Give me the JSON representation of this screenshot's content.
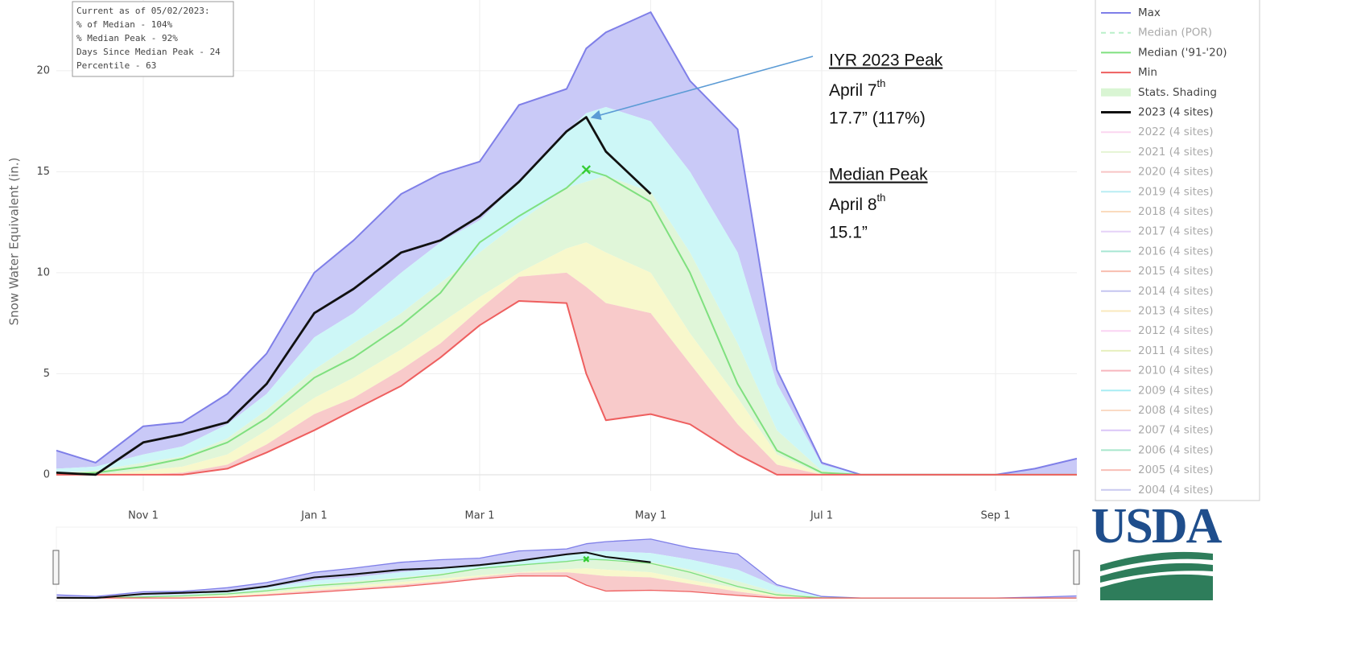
{
  "chart_data": {
    "type": "line",
    "y_label": "Snow Water Equivalent (in.)",
    "info_box": [
      "Current as of 05/02/2023:",
      "% of Median - 104%",
      "% Median Peak - 92%",
      "Days Since Median Peak - 24",
      "Percentile - 63"
    ],
    "x": [
      "Oct 1",
      "Oct 15",
      "Nov 1",
      "Nov 15",
      "Dec 1",
      "Dec 15",
      "Jan 1",
      "Jan 15",
      "Feb 1",
      "Feb 15",
      "Mar 1",
      "Mar 15",
      "Apr 1",
      "Apr 8",
      "Apr 15",
      "May 1",
      "May 15",
      "Jun 1",
      "Jun 15",
      "Jul 1",
      "Jul 15",
      "Aug 1",
      "Sep 1",
      "Sep 15",
      "Sep 30"
    ],
    "xlim": [
      "Oct 1",
      "Sep 30"
    ],
    "xticks": [
      "Nov 1",
      "Jan 1",
      "Mar 1",
      "May 1",
      "Jul 1",
      "Sep 1"
    ],
    "ylim": [
      -0.6,
      23.5
    ],
    "yticks": [
      0,
      5,
      10,
      15,
      20
    ],
    "grid": true,
    "series": [
      {
        "name": "Max",
        "color": "#7f7fe8",
        "values": [
          1.2,
          0.6,
          2.4,
          2.6,
          4.0,
          6.0,
          10.0,
          11.6,
          13.9,
          14.9,
          15.5,
          18.3,
          19.1,
          21.1,
          21.9,
          22.9,
          19.5,
          17.1,
          5.2,
          0.6,
          0,
          0,
          0,
          0.3,
          0.8
        ]
      },
      {
        "name": "Median (POR)",
        "color": "#66dd88",
        "visible": false,
        "dash": true
      },
      {
        "name": "Median ('91-'20)",
        "color": "#7fe07f",
        "values": [
          0,
          0.1,
          0.4,
          0.8,
          1.6,
          2.8,
          4.8,
          5.8,
          7.4,
          9.0,
          11.5,
          12.8,
          14.2,
          15.1,
          14.8,
          13.5,
          10.0,
          4.5,
          1.2,
          0.1,
          0,
          0,
          0,
          0,
          0
        ]
      },
      {
        "name": "Min",
        "color": "#ee5f5f",
        "values": [
          0,
          0,
          0,
          0,
          0.3,
          1.1,
          2.2,
          3.2,
          4.4,
          5.8,
          7.4,
          8.6,
          8.5,
          5.0,
          2.7,
          3.0,
          2.5,
          1.0,
          0,
          0,
          0,
          0,
          0,
          0,
          0
        ]
      },
      {
        "name": "Stats. Shading",
        "color": "#d9f5d3",
        "bands": [
          {
            "color": "#c9c9f7",
            "values": [
              0.3,
              0.4,
              1.0,
              1.4,
              2.5,
              4.0,
              6.8,
              8.0,
              10.0,
              11.5,
              12.6,
              14.5,
              17.0,
              17.9,
              18.2,
              17.5,
              15.0,
              11.0,
              4.5,
              0.5,
              0,
              0,
              0,
              0,
              0
            ]
          },
          {
            "color": "#cdf7f7",
            "values": [
              0.1,
              0.2,
              0.6,
              0.9,
              1.8,
              3.2,
              5.2,
              6.5,
              8.0,
              9.5,
              11.0,
              12.5,
              14.2,
              14.5,
              14.8,
              14.0,
              11.0,
              6.5,
              2.2,
              0.2,
              0,
              0,
              0,
              0,
              0
            ]
          },
          {
            "color": "#e0f6d9",
            "values": [
              0,
              0,
              0.2,
              0.4,
              1.0,
              2.2,
              3.8,
              4.8,
              6.2,
              7.5,
              8.8,
              10.0,
              11.2,
              11.5,
              11.0,
              10.0,
              7.0,
              3.8,
              1.0,
              0,
              0,
              0,
              0,
              0,
              0
            ]
          },
          {
            "color": "#f8f8cc",
            "values": [
              0,
              0,
              0,
              0.1,
              0.5,
              1.5,
              3.0,
              3.8,
              5.2,
              6.5,
              8.2,
              9.8,
              10.0,
              9.3,
              8.5,
              8.0,
              5.5,
              2.5,
              0.5,
              0,
              0,
              0,
              0,
              0,
              0
            ]
          },
          {
            "color": "#f8caca"
          }
        ]
      },
      {
        "name": "2023 (4 sites)",
        "color": "#111111",
        "values": [
          0.1,
          0,
          1.6,
          2.0,
          2.6,
          4.5,
          8.0,
          9.2,
          11.0,
          11.6,
          12.8,
          14.5,
          17.0,
          17.7,
          16.0,
          13.9,
          null,
          null,
          null,
          null,
          null,
          null,
          null,
          null,
          null
        ]
      },
      {
        "name": "2022 (4 sites)",
        "color": "#f7a6e0",
        "visible": false
      },
      {
        "name": "2021 (4 sites)",
        "color": "#c6e8a0",
        "visible": false
      },
      {
        "name": "2020 (4 sites)",
        "color": "#f08080",
        "visible": false
      },
      {
        "name": "2019 (4 sites)",
        "color": "#66d9e8",
        "visible": false
      },
      {
        "name": "2018 (4 sites)",
        "color": "#f5b070",
        "visible": false
      },
      {
        "name": "2017 (4 sites)",
        "color": "#c89cf0",
        "visible": false
      },
      {
        "name": "2016 (4 sites)",
        "color": "#40c8a0",
        "visible": false
      },
      {
        "name": "2015 (4 sites)",
        "color": "#f07050",
        "visible": false
      },
      {
        "name": "2014 (4 sites)",
        "color": "#8080e0",
        "visible": false
      },
      {
        "name": "2013 (4 sites)",
        "color": "#f5d070",
        "visible": false
      },
      {
        "name": "2012 (4 sites)",
        "color": "#f5a0e8",
        "visible": false
      },
      {
        "name": "2011 (4 sites)",
        "color": "#c8e070",
        "visible": false
      },
      {
        "name": "2010 (4 sites)",
        "color": "#f06070",
        "visible": false
      },
      {
        "name": "2009 (4 sites)",
        "color": "#40d8e8",
        "visible": false
      },
      {
        "name": "2008 (4 sites)",
        "color": "#f5b080",
        "visible": false
      },
      {
        "name": "2007 (4 sites)",
        "color": "#b080f0",
        "visible": false
      },
      {
        "name": "2006 (4 sites)",
        "color": "#40c890",
        "visible": false
      },
      {
        "name": "2005 (4 sites)",
        "color": "#f07060",
        "visible": false
      },
      {
        "name": "2004 (4 sites)",
        "color": "#8888e0",
        "visible": false
      }
    ],
    "peak_annotation": {
      "title": "IYR 2023 Peak",
      "date": "April 7",
      "date_suffix": "th",
      "value": "17.7” (117%)"
    },
    "median_annotation": {
      "title": "Median Peak",
      "date": "April 8",
      "date_suffix": "th",
      "value": "15.1”"
    },
    "logo": "USDA"
  }
}
